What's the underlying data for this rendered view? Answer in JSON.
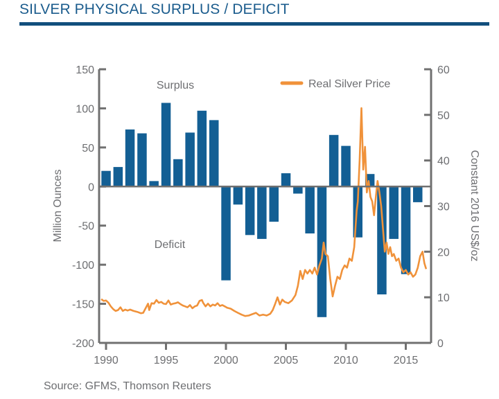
{
  "header": {
    "title": "SILVER PHYSICAL SURPLUS / DEFICIT"
  },
  "source": "Source: GFMS, Thomson Reuters",
  "colors": {
    "bar": "#135f94",
    "line": "#f0923a",
    "axis": "#707070",
    "title": "#1b5c8d",
    "rule": "#124f7d"
  },
  "chart_data": {
    "type": "bar+line",
    "title": "SILVER PHYSICAL SURPLUS / DEFICIT",
    "xlabel": "",
    "ylabel": "Million Ounces",
    "y2label": "Constant 2016 US$/oz",
    "ylim": [
      -200,
      150
    ],
    "y2lim": [
      0,
      60
    ],
    "xlim": [
      1989.5,
      2016.7
    ],
    "grid": false,
    "legend_position": "top-right",
    "x_ticks": [
      "1990",
      "1995",
      "2000",
      "2005",
      "2010",
      "2015"
    ],
    "y_ticks": [
      "150",
      "100",
      "50",
      "0",
      "-50",
      "-100",
      "-150",
      "-200"
    ],
    "y2_ticks": [
      "60",
      "50",
      "40",
      "30",
      "20",
      "10",
      "0"
    ],
    "annotations": {
      "surplus": "Surplus",
      "deficit": "Deficit"
    },
    "series": [
      {
        "name": "Surplus / Deficit",
        "kind": "bar",
        "axis": "left",
        "categories": [
          1990,
          1991,
          1992,
          1993,
          1994,
          1995,
          1996,
          1997,
          1998,
          1999,
          2000,
          2001,
          2002,
          2003,
          2004,
          2005,
          2006,
          2007,
          2008,
          2009,
          2010,
          2011,
          2012,
          2013,
          2014,
          2015,
          2016
        ],
        "values": [
          20,
          25,
          73,
          68,
          7,
          107,
          35,
          69,
          97,
          85,
          -120,
          -23,
          -62,
          -67,
          -45,
          17,
          -9,
          -60,
          -167,
          66,
          52,
          -65,
          16,
          -138,
          -67,
          -112,
          -20
        ]
      },
      {
        "name": "Real Silver Price",
        "kind": "line",
        "axis": "right",
        "points": [
          [
            1989.6,
            9.6
          ],
          [
            1989.8,
            9.2
          ],
          [
            1990.0,
            9.3
          ],
          [
            1990.2,
            8.8
          ],
          [
            1990.4,
            8.0
          ],
          [
            1990.6,
            7.4
          ],
          [
            1990.8,
            7.0
          ],
          [
            1991.0,
            7.2
          ],
          [
            1991.2,
            7.8
          ],
          [
            1991.4,
            7.0
          ],
          [
            1991.6,
            7.3
          ],
          [
            1991.8,
            7.1
          ],
          [
            1992.0,
            7.3
          ],
          [
            1992.3,
            7.0
          ],
          [
            1992.6,
            6.8
          ],
          [
            1992.9,
            6.5
          ],
          [
            1993.1,
            6.6
          ],
          [
            1993.3,
            7.6
          ],
          [
            1993.5,
            8.6
          ],
          [
            1993.6,
            7.2
          ],
          [
            1993.8,
            8.7
          ],
          [
            1994.0,
            8.6
          ],
          [
            1994.2,
            9.4
          ],
          [
            1994.4,
            8.8
          ],
          [
            1994.6,
            9.0
          ],
          [
            1994.8,
            8.6
          ],
          [
            1995.0,
            8.5
          ],
          [
            1995.2,
            9.3
          ],
          [
            1995.4,
            8.4
          ],
          [
            1995.6,
            8.6
          ],
          [
            1995.8,
            8.7
          ],
          [
            1996.0,
            8.9
          ],
          [
            1996.2,
            8.5
          ],
          [
            1996.4,
            8.2
          ],
          [
            1996.6,
            8.0
          ],
          [
            1996.8,
            7.8
          ],
          [
            1997.0,
            8.3
          ],
          [
            1997.2,
            7.6
          ],
          [
            1997.4,
            8.0
          ],
          [
            1997.6,
            8.2
          ],
          [
            1997.8,
            9.2
          ],
          [
            1998.0,
            9.4
          ],
          [
            1998.1,
            8.8
          ],
          [
            1998.3,
            8.0
          ],
          [
            1998.5,
            8.6
          ],
          [
            1998.7,
            8.0
          ],
          [
            1998.9,
            8.4
          ],
          [
            1999.1,
            8.2
          ],
          [
            1999.3,
            8.7
          ],
          [
            1999.5,
            8.1
          ],
          [
            1999.7,
            8.3
          ],
          [
            1999.9,
            8.0
          ],
          [
            2000.1,
            7.7
          ],
          [
            2000.4,
            7.5
          ],
          [
            2000.7,
            7.0
          ],
          [
            2001.0,
            6.6
          ],
          [
            2001.3,
            6.2
          ],
          [
            2001.6,
            5.9
          ],
          [
            2001.9,
            6.0
          ],
          [
            2002.2,
            6.3
          ],
          [
            2002.5,
            6.6
          ],
          [
            2002.8,
            6.0
          ],
          [
            2003.1,
            6.2
          ],
          [
            2003.4,
            6.0
          ],
          [
            2003.7,
            6.4
          ],
          [
            2003.9,
            7.2
          ],
          [
            2004.1,
            8.5
          ],
          [
            2004.3,
            10.0
          ],
          [
            2004.5,
            8.4
          ],
          [
            2004.7,
            9.5
          ],
          [
            2004.9,
            9.0
          ],
          [
            2005.2,
            8.7
          ],
          [
            2005.5,
            9.3
          ],
          [
            2005.8,
            10.5
          ],
          [
            2006.0,
            12.5
          ],
          [
            2006.2,
            15.8
          ],
          [
            2006.4,
            14.0
          ],
          [
            2006.6,
            16.0
          ],
          [
            2006.8,
            15.2
          ],
          [
            2007.0,
            16.0
          ],
          [
            2007.2,
            15.2
          ],
          [
            2007.4,
            16.5
          ],
          [
            2007.6,
            15.0
          ],
          [
            2007.8,
            17.0
          ],
          [
            2008.0,
            18.5
          ],
          [
            2008.15,
            22.0
          ],
          [
            2008.3,
            19.5
          ],
          [
            2008.5,
            19.0
          ],
          [
            2008.7,
            14.0
          ],
          [
            2008.9,
            10.2
          ],
          [
            2009.1,
            12.5
          ],
          [
            2009.3,
            14.5
          ],
          [
            2009.5,
            14.0
          ],
          [
            2009.7,
            16.0
          ],
          [
            2009.9,
            17.0
          ],
          [
            2010.1,
            16.5
          ],
          [
            2010.3,
            18.5
          ],
          [
            2010.5,
            18.0
          ],
          [
            2010.7,
            21.0
          ],
          [
            2010.9,
            29.0
          ],
          [
            2011.0,
            31.0
          ],
          [
            2011.15,
            40.0
          ],
          [
            2011.3,
            51.5
          ],
          [
            2011.45,
            38.0
          ],
          [
            2011.6,
            43.0
          ],
          [
            2011.75,
            33.0
          ],
          [
            2011.9,
            35.5
          ],
          [
            2012.05,
            32.0
          ],
          [
            2012.2,
            31.0
          ],
          [
            2012.35,
            28.0
          ],
          [
            2012.5,
            32.0
          ],
          [
            2012.65,
            35.5
          ],
          [
            2012.8,
            33.0
          ],
          [
            2012.95,
            30.0
          ],
          [
            2013.1,
            25.0
          ],
          [
            2013.25,
            20.0
          ],
          [
            2013.4,
            22.0
          ],
          [
            2013.55,
            19.5
          ],
          [
            2013.7,
            21.0
          ],
          [
            2013.85,
            19.0
          ],
          [
            2014.0,
            19.5
          ],
          [
            2014.2,
            18.0
          ],
          [
            2014.4,
            18.5
          ],
          [
            2014.6,
            16.5
          ],
          [
            2014.8,
            15.5
          ],
          [
            2015.0,
            16.0
          ],
          [
            2015.2,
            15.0
          ],
          [
            2015.4,
            15.5
          ],
          [
            2015.6,
            14.5
          ],
          [
            2015.8,
            15.0
          ],
          [
            2016.0,
            16.5
          ],
          [
            2016.2,
            19.0
          ],
          [
            2016.4,
            20.0
          ],
          [
            2016.55,
            17.5
          ],
          [
            2016.7,
            16.2
          ]
        ]
      }
    ]
  }
}
